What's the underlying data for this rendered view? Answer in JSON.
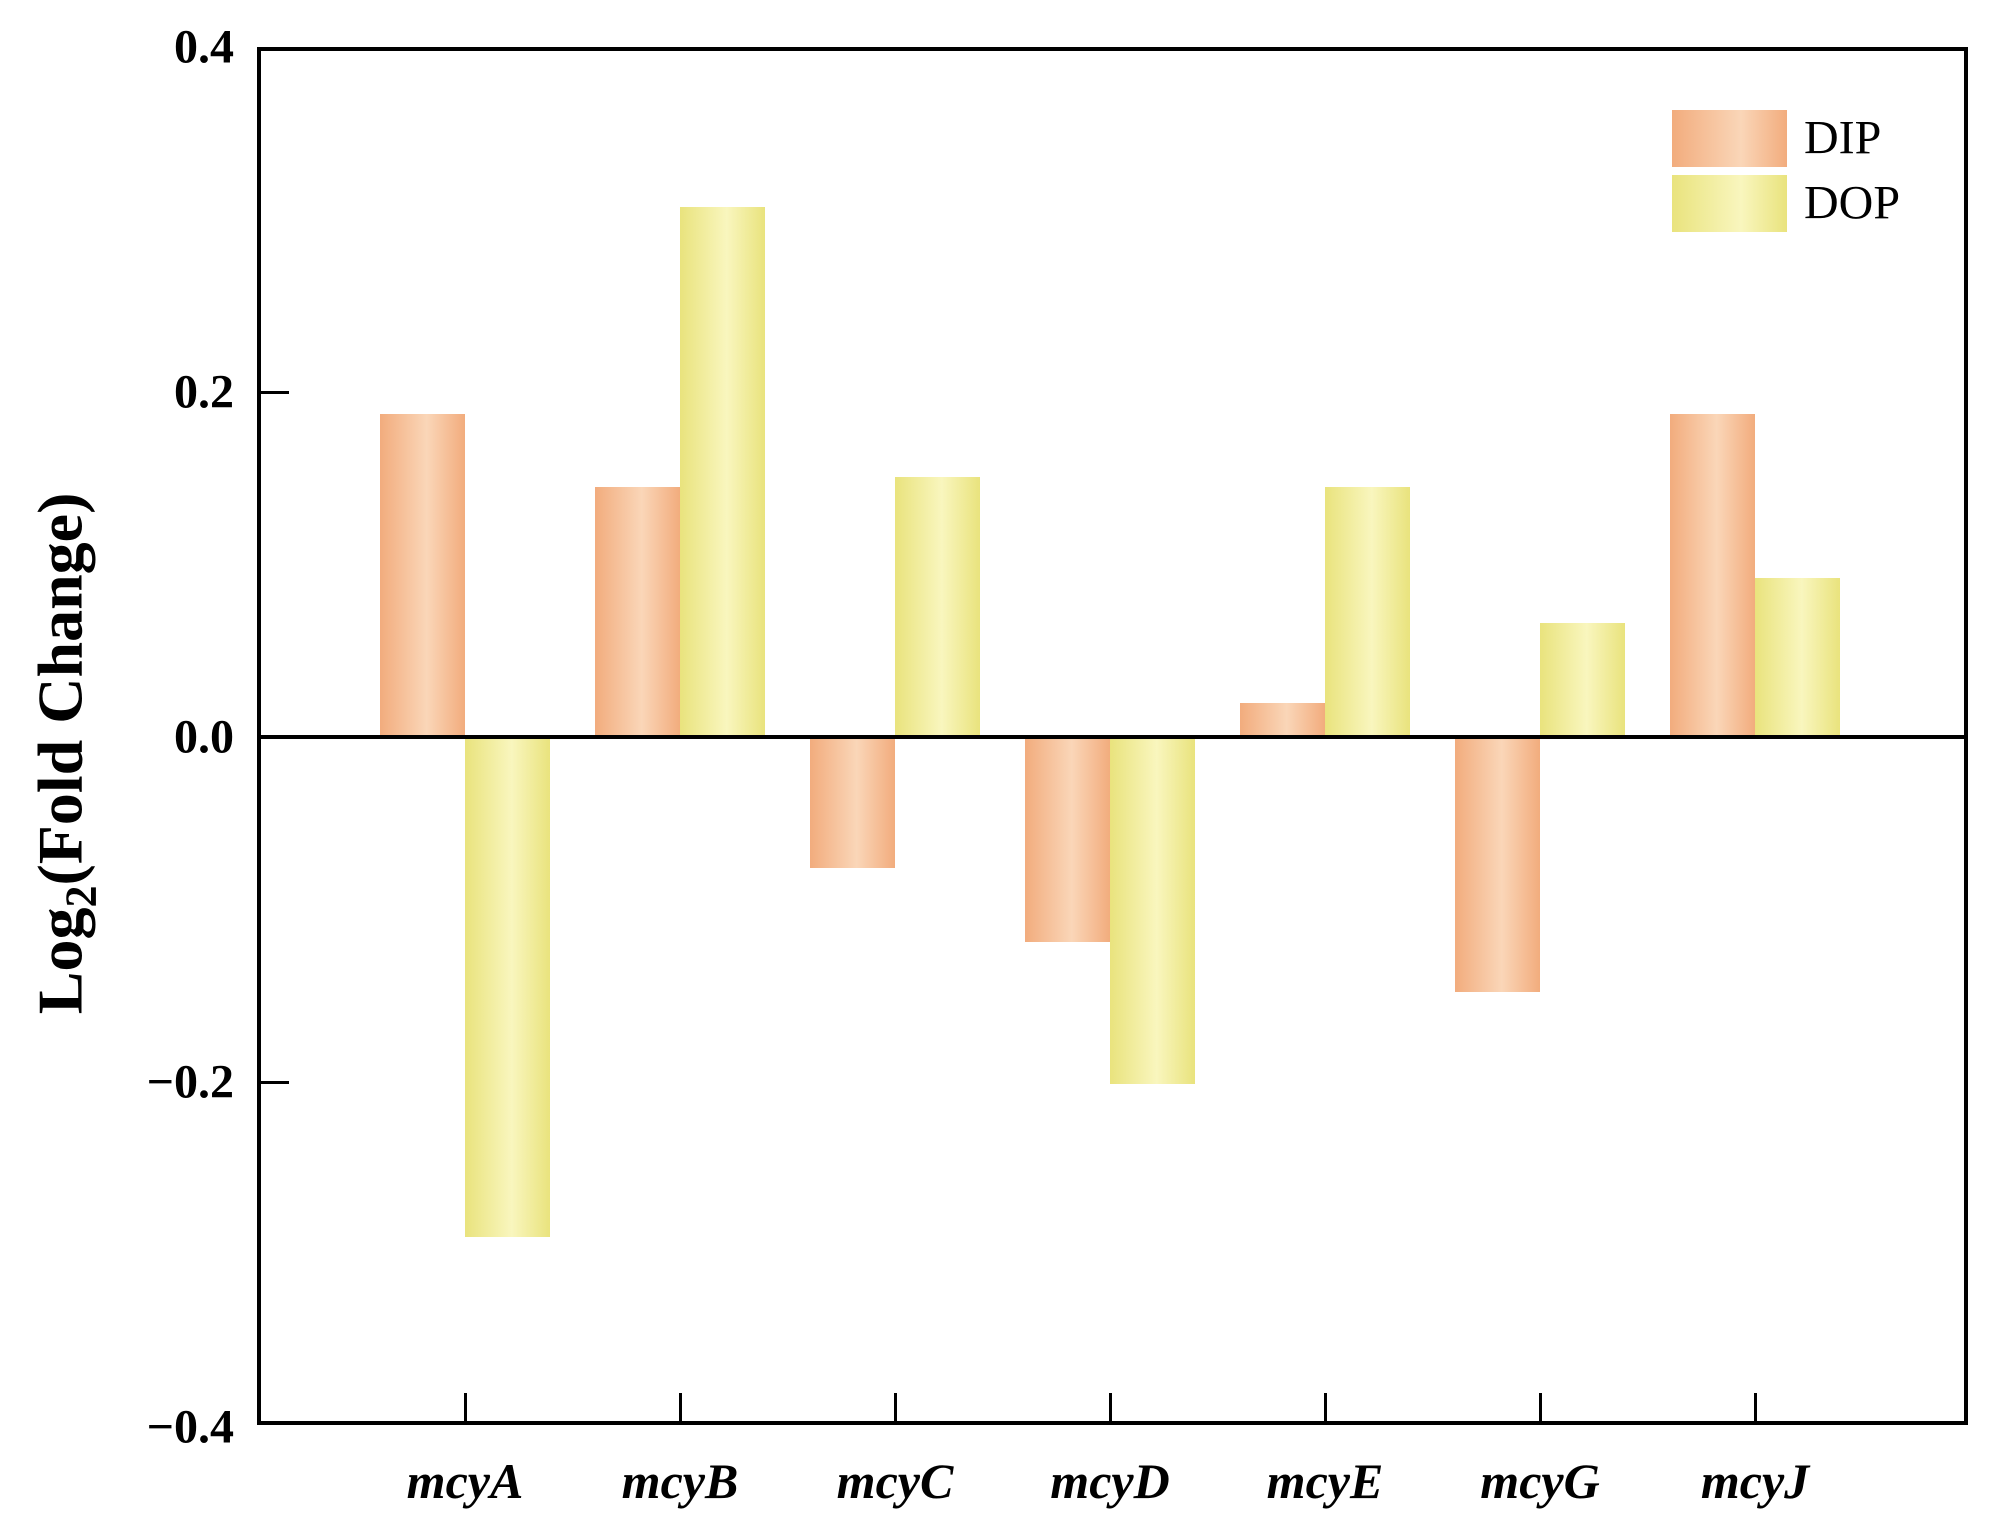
{
  "chart_data": {
    "type": "bar",
    "title": "",
    "categories": [
      "mcyA",
      "mcyB",
      "mcyC",
      "mcyD",
      "mcyE",
      "mcyG",
      "mcyJ"
    ],
    "series": [
      {
        "name": "DIP",
        "values": [
          0.187,
          0.145,
          -0.076,
          -0.119,
          0.02,
          -0.148,
          0.187
        ]
      },
      {
        "name": "DOP",
        "values": [
          -0.29,
          0.307,
          0.151,
          -0.201,
          0.145,
          0.066,
          0.092
        ]
      }
    ],
    "ylabel": {
      "prefix": "Log",
      "sub": "2",
      "suffix": "(Fold Change)"
    },
    "xlabel": "",
    "ylim": [
      -0.4,
      0.4
    ],
    "yticks": [
      {
        "value": 0.4,
        "label": "0.4"
      },
      {
        "value": 0.2,
        "label": "0.2"
      },
      {
        "value": 0.0,
        "label": "0.0"
      },
      {
        "value": -0.2,
        "label": "−0.2"
      },
      {
        "value": -0.4,
        "label": "−0.4"
      }
    ],
    "legend": [
      {
        "label": "DIP"
      },
      {
        "label": "DOP"
      }
    ],
    "legend_position": "top-right",
    "grid": false
  },
  "colors": {
    "dip_edge": "#F2AC7D",
    "dip_light": "#FAD6B8",
    "dop_edge": "#E9E37D",
    "dop_light": "#F9F6BE",
    "axis": "#000000",
    "background": "#FFFFFF"
  }
}
